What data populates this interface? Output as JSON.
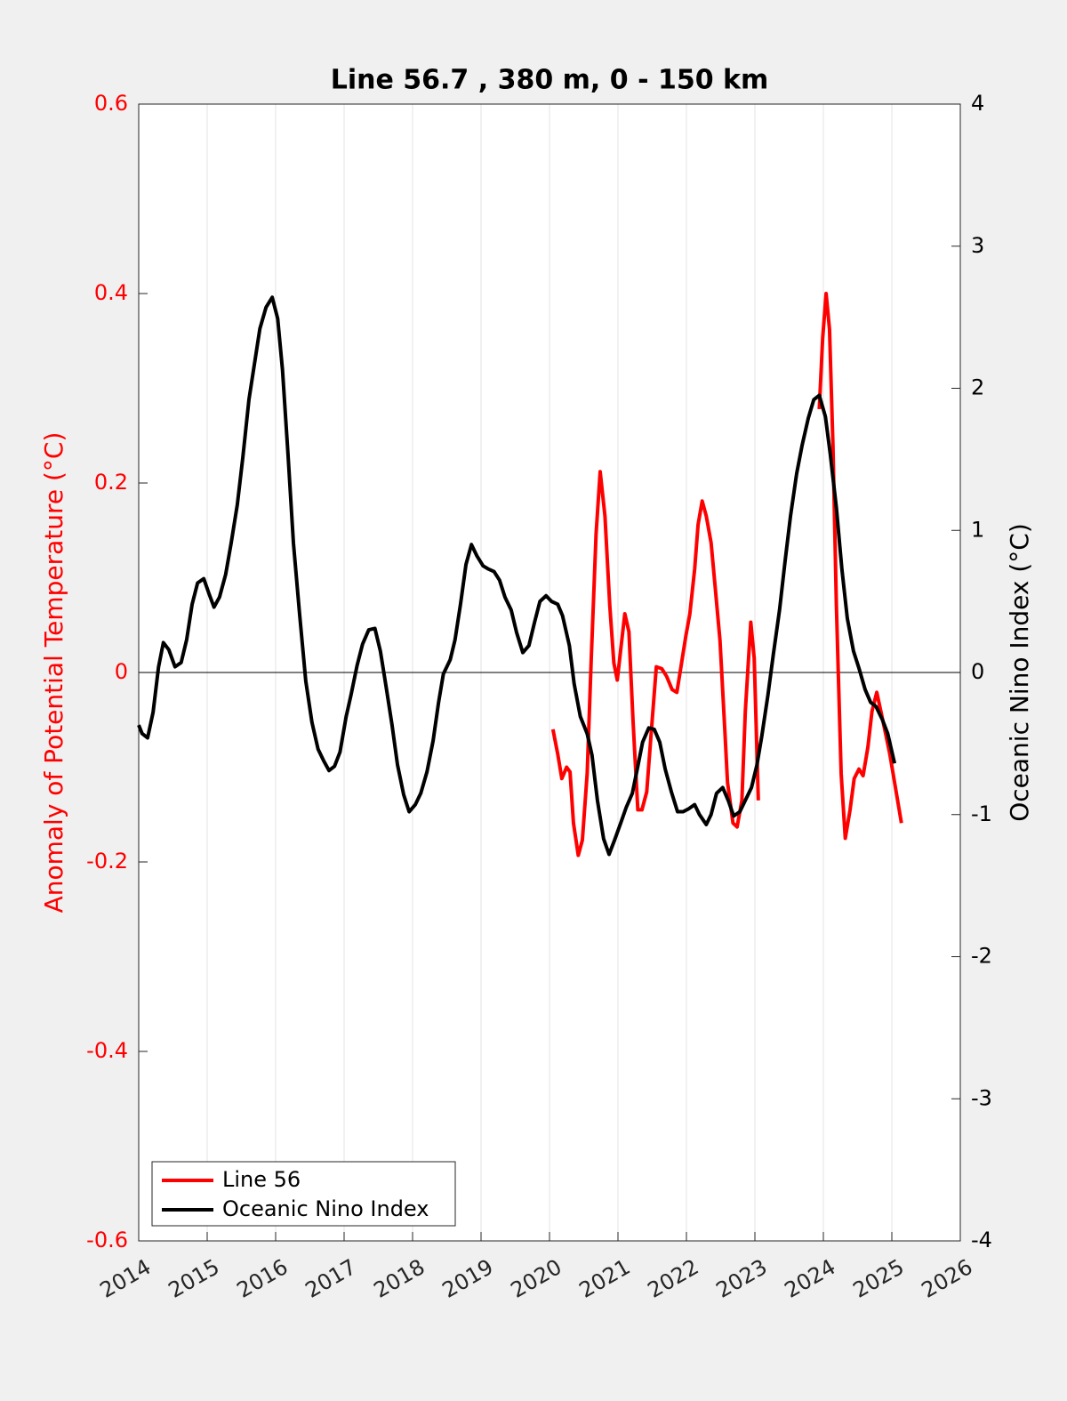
{
  "chart_data": {
    "type": "line",
    "title": "Line 56.7 , 380 m, 0 - 150 km",
    "ylabel": "Anomaly of Potential Temperature (°C)",
    "y2label": "Oceanic Nino Index (°C)",
    "xlim": [
      2014,
      2026
    ],
    "xticks": [
      2014,
      2015,
      2016,
      2017,
      2018,
      2019,
      2020,
      2021,
      2022,
      2023,
      2024,
      2025,
      2026
    ],
    "ylim": [
      -0.6,
      0.6
    ],
    "yticks": [
      -0.6,
      -0.4,
      -0.2,
      0,
      0.2,
      0.4,
      0.6
    ],
    "y2lim": [
      -4,
      4
    ],
    "y2ticks": [
      -4,
      -3,
      -2,
      -1,
      0,
      1,
      2,
      3,
      4
    ],
    "grid": "x",
    "zero_line": true,
    "legend": "lower left",
    "ylabel_color": "#ff0000",
    "series": [
      {
        "name": "Line 56",
        "color": "#ff0000",
        "axis": "y",
        "x": [
          2020.05,
          2020.12,
          2020.18,
          2020.25,
          2020.3,
          2020.35,
          2020.42,
          2020.48,
          2020.55,
          2020.61,
          2020.68,
          2020.74,
          2020.81,
          2020.88,
          2020.94,
          2020.99,
          2021.04,
          2021.1,
          2021.16,
          2021.22,
          2021.29,
          2021.35,
          2021.42,
          2021.48,
          2021.56,
          2021.64,
          2021.71,
          2021.79,
          2021.86,
          2021.92,
          2021.99,
          2022.05,
          2022.12,
          2022.17,
          2022.23,
          2022.29,
          2022.36,
          2022.42,
          2022.49,
          2022.56,
          2022.6,
          2022.68,
          2022.74,
          2022.81,
          2022.86,
          2022.94,
          2022.99,
          2023.05,
          null,
          2023.94,
          2023.99,
          2024.04,
          2024.09,
          2024.14,
          2024.19,
          2024.26,
          2024.32,
          2024.39,
          2024.45,
          2024.52,
          2024.58,
          2024.65,
          2024.71,
          2024.78,
          2024.84,
          2024.91,
          2024.97,
          2025.04,
          2025.14
        ],
        "values": [
          -0.06,
          -0.086,
          -0.112,
          -0.1,
          -0.105,
          -0.159,
          -0.193,
          -0.177,
          -0.107,
          0.015,
          0.146,
          0.212,
          0.165,
          0.071,
          0.01,
          -0.008,
          0.024,
          0.062,
          0.043,
          -0.051,
          -0.145,
          -0.145,
          -0.126,
          -0.069,
          0.006,
          0.004,
          -0.004,
          -0.018,
          -0.021,
          0.006,
          0.038,
          0.062,
          0.109,
          0.156,
          0.181,
          0.165,
          0.137,
          0.09,
          0.034,
          -0.06,
          -0.116,
          -0.159,
          -0.163,
          -0.135,
          -0.041,
          0.053,
          0.015,
          -0.135,
          null,
          0.278,
          0.353,
          0.4,
          0.362,
          0.24,
          0.071,
          -0.107,
          -0.175,
          -0.145,
          -0.112,
          -0.102,
          -0.109,
          -0.079,
          -0.041,
          -0.021,
          -0.041,
          -0.065,
          -0.086,
          -0.116,
          -0.159
        ]
      },
      {
        "name": "Oceanic Nino Index",
        "color": "#000000",
        "axis": "y2",
        "x": [
          2014.0,
          2014.05,
          2014.13,
          2014.21,
          2014.29,
          2014.36,
          2014.44,
          2014.53,
          2014.62,
          2014.7,
          2014.78,
          2014.86,
          2014.95,
          2015.03,
          2015.1,
          2015.18,
          2015.27,
          2015.35,
          2015.44,
          2015.52,
          2015.61,
          2015.69,
          2015.77,
          2015.86,
          2015.95,
          2016.03,
          2016.1,
          2016.18,
          2016.26,
          2016.35,
          2016.44,
          2016.53,
          2016.62,
          2016.7,
          2016.78,
          2016.86,
          2016.94,
          2017.03,
          2017.1,
          2017.19,
          2017.27,
          2017.36,
          2017.45,
          2017.53,
          2017.61,
          2017.7,
          2017.78,
          2017.87,
          2017.95,
          2018.04,
          2018.12,
          2018.21,
          2018.3,
          2018.38,
          2018.45,
          2018.55,
          2018.62,
          2018.7,
          2018.78,
          2018.86,
          2018.94,
          2019.03,
          2019.1,
          2019.19,
          2019.27,
          2019.35,
          2019.44,
          2019.52,
          2019.61,
          2019.7,
          2019.78,
          2019.86,
          2019.95,
          2020.03,
          2020.12,
          2020.19,
          2020.29,
          2020.36,
          2020.45,
          2020.55,
          2020.62,
          2020.7,
          2020.79,
          2020.87,
          2020.95,
          2021.04,
          2021.12,
          2021.21,
          2021.29,
          2021.36,
          2021.45,
          2021.53,
          2021.61,
          2021.69,
          2021.78,
          2021.87,
          2021.95,
          2022.03,
          2022.12,
          2022.19,
          2022.29,
          2022.36,
          2022.44,
          2022.53,
          2022.61,
          2022.69,
          2022.78,
          2022.86,
          2022.95,
          2023.03,
          2023.1,
          2023.19,
          2023.27,
          2023.36,
          2023.44,
          2023.52,
          2023.61,
          2023.69,
          2023.78,
          2023.86,
          2023.94,
          2024.03,
          2024.1,
          2024.19,
          2024.27,
          2024.35,
          2024.44,
          2024.52,
          2024.61,
          2024.69,
          2024.77,
          2024.86,
          2024.94,
          2025.04
        ],
        "values": [
          -0.37,
          -0.43,
          -0.46,
          -0.28,
          0.04,
          0.21,
          0.16,
          0.04,
          0.07,
          0.23,
          0.48,
          0.63,
          0.66,
          0.55,
          0.46,
          0.53,
          0.69,
          0.91,
          1.18,
          1.51,
          1.92,
          2.17,
          2.42,
          2.57,
          2.64,
          2.49,
          2.13,
          1.54,
          0.91,
          0.41,
          -0.06,
          -0.35,
          -0.54,
          -0.62,
          -0.69,
          -0.66,
          -0.56,
          -0.31,
          -0.16,
          0.05,
          0.2,
          0.3,
          0.31,
          0.15,
          -0.09,
          -0.37,
          -0.65,
          -0.86,
          -0.98,
          -0.93,
          -0.85,
          -0.7,
          -0.48,
          -0.21,
          -0.01,
          0.09,
          0.23,
          0.48,
          0.76,
          0.9,
          0.82,
          0.75,
          0.73,
          0.71,
          0.65,
          0.53,
          0.44,
          0.28,
          0.14,
          0.19,
          0.35,
          0.5,
          0.54,
          0.5,
          0.48,
          0.4,
          0.19,
          -0.08,
          -0.31,
          -0.43,
          -0.58,
          -0.9,
          -1.17,
          -1.28,
          -1.18,
          -1.06,
          -0.95,
          -0.85,
          -0.66,
          -0.49,
          -0.39,
          -0.4,
          -0.49,
          -0.68,
          -0.84,
          -0.98,
          -0.98,
          -0.96,
          -0.93,
          -1.0,
          -1.07,
          -1.0,
          -0.85,
          -0.81,
          -0.9,
          -1.01,
          -0.98,
          -0.9,
          -0.81,
          -0.65,
          -0.45,
          -0.16,
          0.13,
          0.44,
          0.78,
          1.1,
          1.4,
          1.6,
          1.79,
          1.92,
          1.95,
          1.8,
          1.54,
          1.16,
          0.73,
          0.38,
          0.15,
          0.03,
          -0.12,
          -0.21,
          -0.24,
          -0.33,
          -0.43,
          -0.64
        ]
      }
    ]
  }
}
